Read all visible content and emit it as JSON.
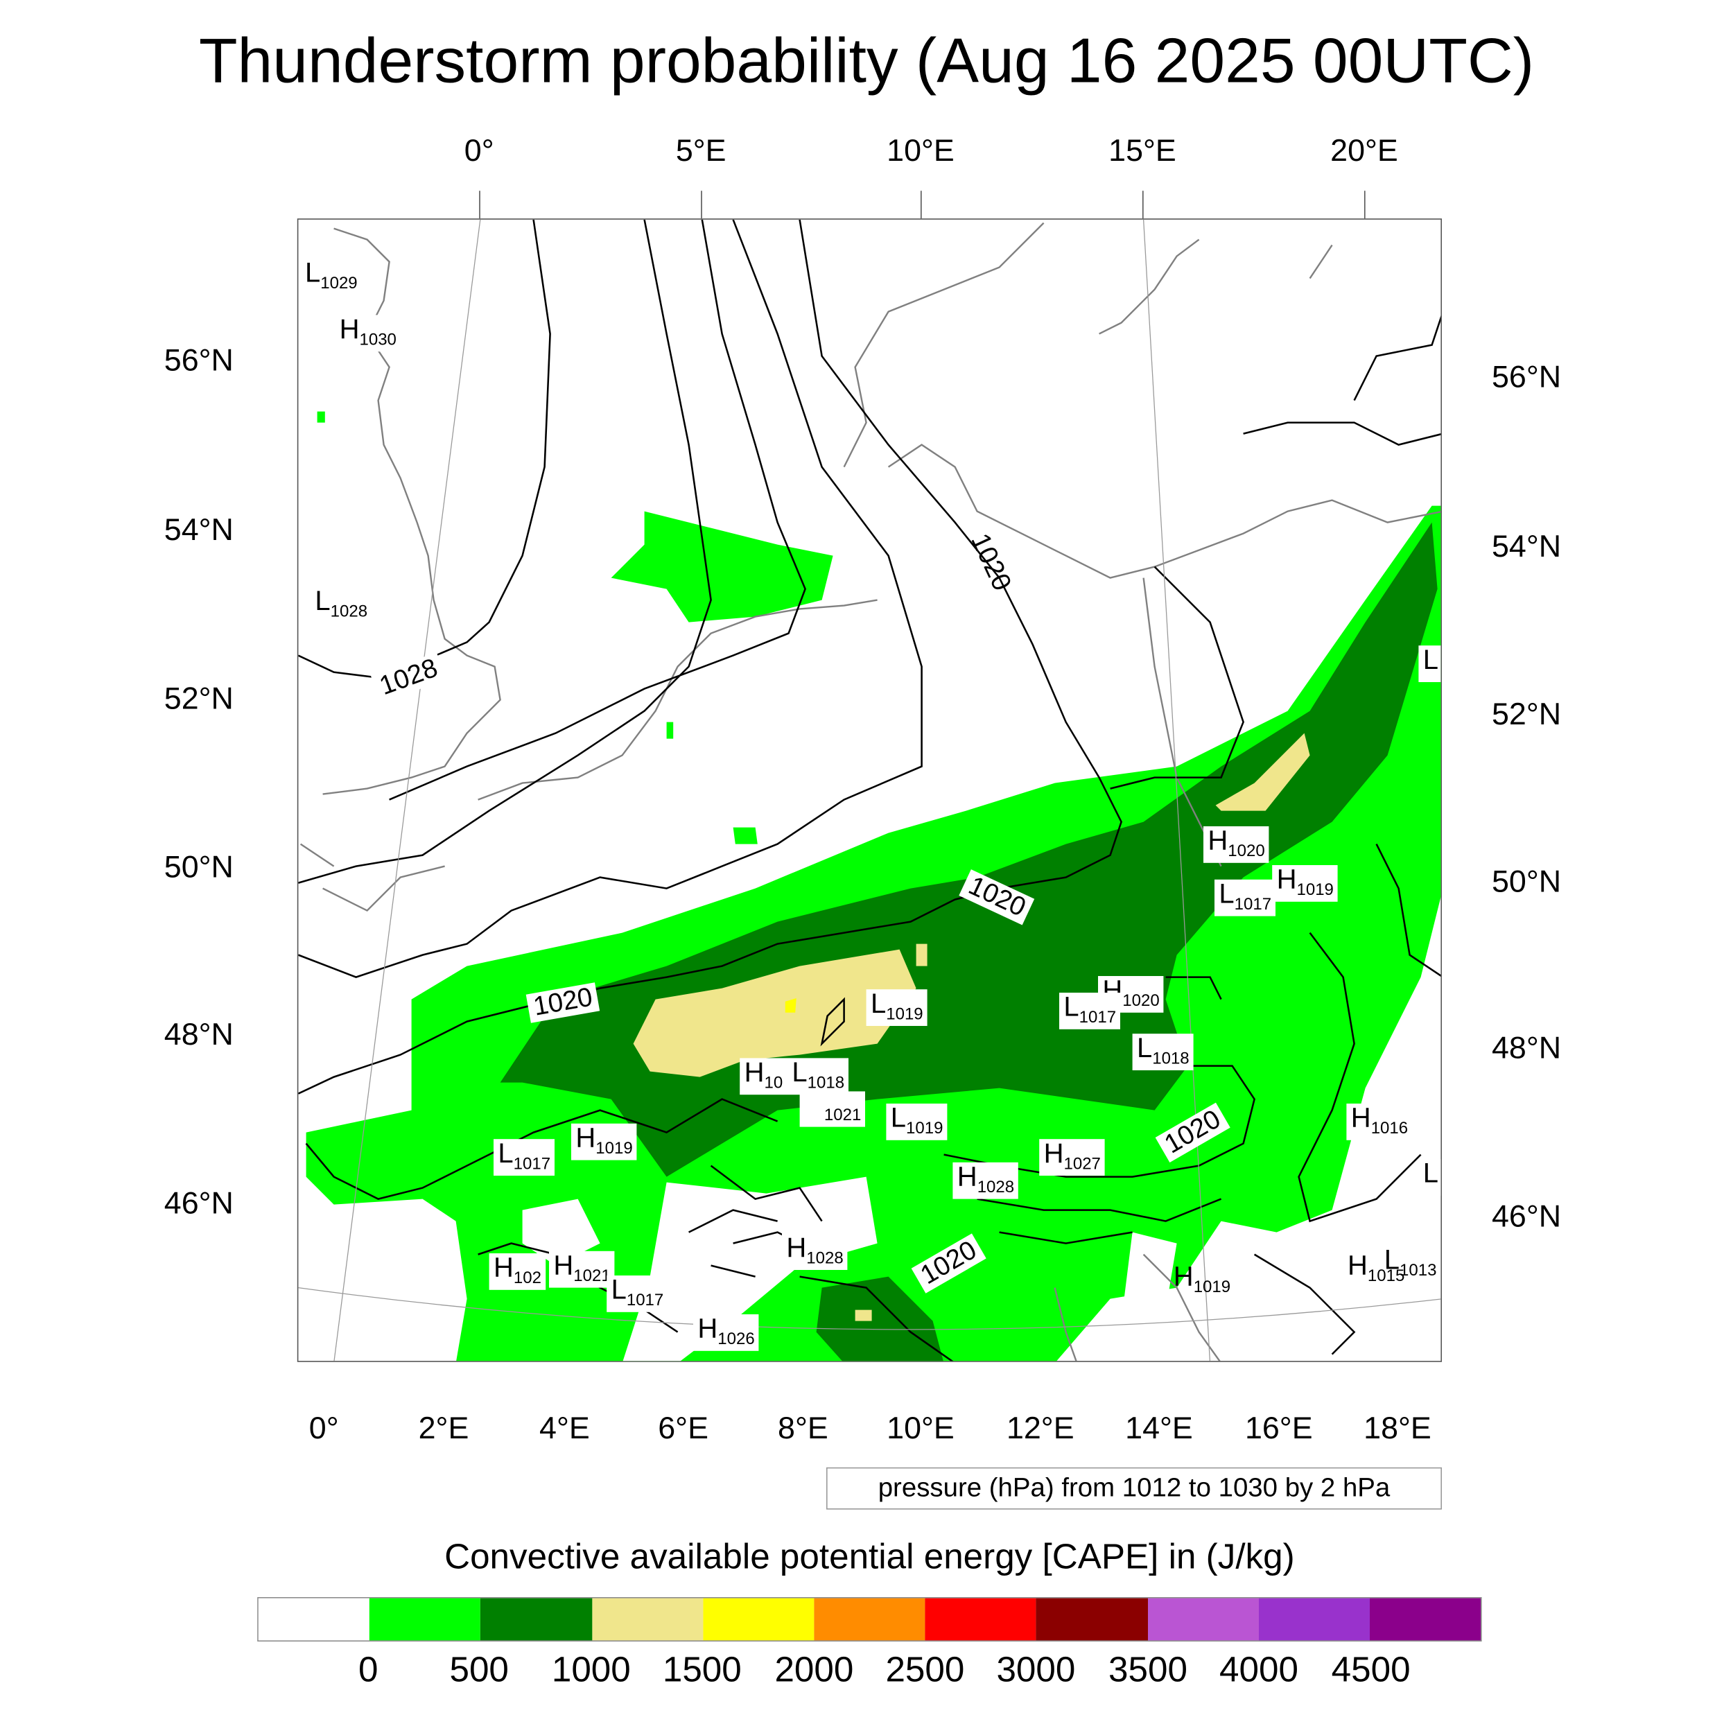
{
  "title": "Thunderstorm probability (Aug 16 2025 00UTC)",
  "axes": {
    "top_lon": [
      "0°",
      "5°E",
      "10°E",
      "15°E",
      "20°E"
    ],
    "bottom_lon": [
      "0°",
      "2°E",
      "4°E",
      "6°E",
      "8°E",
      "10°E",
      "12°E",
      "14°E",
      "16°E",
      "18°E"
    ],
    "left_lat": [
      "56°N",
      "54°N",
      "52°N",
      "50°N",
      "48°N",
      "46°N"
    ],
    "right_lat": [
      "56°N",
      "54°N",
      "52°N",
      "50°N",
      "48°N",
      "46°N"
    ]
  },
  "pressure_centers": [
    {
      "t": "L",
      "v": "1029"
    },
    {
      "t": "H",
      "v": "1030"
    },
    {
      "t": "L",
      "v": "1028"
    },
    {
      "t": "L",
      "v": "1019"
    },
    {
      "t": "H",
      "v": "10"
    },
    {
      "t": "L",
      "v": "1018"
    },
    {
      "t": "H",
      "v": "1021"
    },
    {
      "t": "L",
      "v": "1019"
    },
    {
      "t": "H",
      "v": "1019"
    },
    {
      "t": "L",
      "v": "1017"
    },
    {
      "t": "H",
      "v": "1020"
    },
    {
      "t": "L",
      "v": "1017"
    },
    {
      "t": "H",
      "v": "1019"
    },
    {
      "t": "H",
      "v": "1020"
    },
    {
      "t": "L",
      "v": "1017"
    },
    {
      "t": "L",
      "v": "1018"
    },
    {
      "t": "H",
      "v": "1016"
    },
    {
      "t": "L",
      "v": ""
    },
    {
      "t": "H",
      "v": "1027"
    },
    {
      "t": "H",
      "v": "1028"
    },
    {
      "t": "H",
      "v": "1028"
    },
    {
      "t": "H",
      "v": "102"
    },
    {
      "t": "H",
      "v": "1021"
    },
    {
      "t": "L",
      "v": "1017"
    },
    {
      "t": "H",
      "v": "1026"
    },
    {
      "t": "H",
      "v": "1019"
    },
    {
      "t": "H",
      "v": "1015"
    },
    {
      "t": "L",
      "v": "1013"
    },
    {
      "t": "L",
      "v": ""
    }
  ],
  "contour_labels": [
    "1028",
    "1020",
    "1020",
    "1020",
    "1020",
    "1020"
  ],
  "pressure_legend": "pressure (hPa) from 1012 to 1030 by 2 hPa",
  "colorbar": {
    "title": "Convective available potential energy [CAPE] in (J/kg)",
    "colors": [
      "#ffffff",
      "#00ff00",
      "#008000",
      "#f0e68c",
      "#ffff00",
      "#ff8c00",
      "#ff0000",
      "#8b0000",
      "#ba55d3",
      "#9932cc",
      "#8b008b"
    ],
    "ticks": [
      "0",
      "500",
      "1000",
      "1500",
      "2000",
      "2500",
      "3000",
      "3500",
      "4000",
      "4500"
    ]
  }
}
